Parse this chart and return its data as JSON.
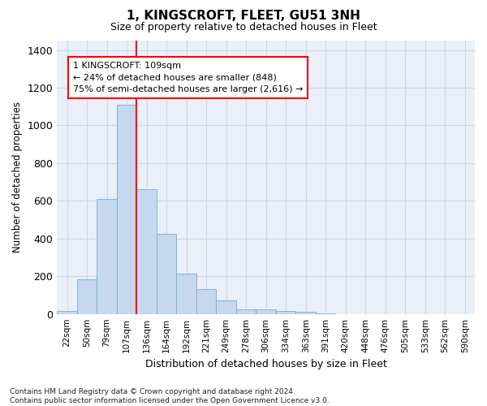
{
  "title": "1, KINGSCROFT, FLEET, GU51 3NH",
  "subtitle": "Size of property relative to detached houses in Fleet",
  "xlabel": "Distribution of detached houses by size in Fleet",
  "ylabel": "Number of detached properties",
  "footer_line1": "Contains HM Land Registry data © Crown copyright and database right 2024.",
  "footer_line2": "Contains public sector information licensed under the Open Government Licence v3.0.",
  "annotation_line1": "1 KINGSCROFT: 109sqm",
  "annotation_line2": "← 24% of detached houses are smaller (848)",
  "annotation_line3": "75% of semi-detached houses are larger (2,616) →",
  "bar_categories": [
    "22sqm",
    "50sqm",
    "79sqm",
    "107sqm",
    "136sqm",
    "164sqm",
    "192sqm",
    "221sqm",
    "249sqm",
    "278sqm",
    "306sqm",
    "334sqm",
    "363sqm",
    "391sqm",
    "420sqm",
    "448sqm",
    "476sqm",
    "505sqm",
    "533sqm",
    "562sqm",
    "590sqm"
  ],
  "bar_values": [
    15,
    185,
    610,
    1110,
    660,
    425,
    215,
    130,
    70,
    25,
    25,
    15,
    10,
    5,
    0,
    0,
    0,
    0,
    0,
    0,
    0
  ],
  "bar_color": "#c5d8f0",
  "bar_edge_color": "#7aabcf",
  "red_line_index": 3,
  "ylim": [
    0,
    1450
  ],
  "yticks": [
    0,
    200,
    400,
    600,
    800,
    1000,
    1200,
    1400
  ],
  "grid_color": "#cdd8ea",
  "bg_color": "#eaeff8"
}
